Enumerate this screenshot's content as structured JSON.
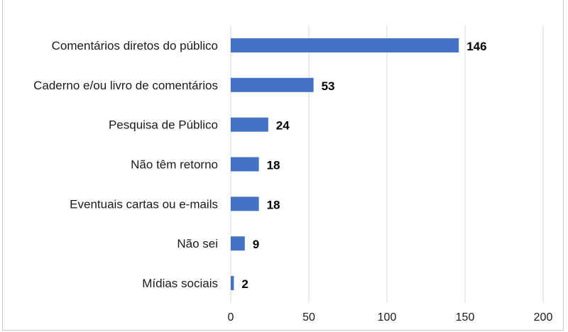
{
  "chart_data": {
    "type": "bar",
    "orientation": "horizontal",
    "categories": [
      "Comentários diretos do público",
      "Caderno e/ou livro de comentários",
      "Pesquisa de Público",
      "Não têm retorno",
      "Eventuais cartas ou e-mails",
      "Não sei",
      "Mídias sociais"
    ],
    "values": [
      146,
      53,
      24,
      18,
      18,
      9,
      2
    ],
    "data_labels": [
      "146",
      "53",
      "24",
      "18",
      "18",
      "9",
      "2"
    ],
    "xlim": [
      0,
      200
    ],
    "x_ticks": [
      0,
      50,
      100,
      150,
      200
    ],
    "x_tick_labels": [
      "0",
      "50",
      "100",
      "150",
      "200"
    ],
    "grid": true,
    "legend": "none",
    "bar_color": "#4472c4",
    "grid_color": "#d9d9d9"
  }
}
